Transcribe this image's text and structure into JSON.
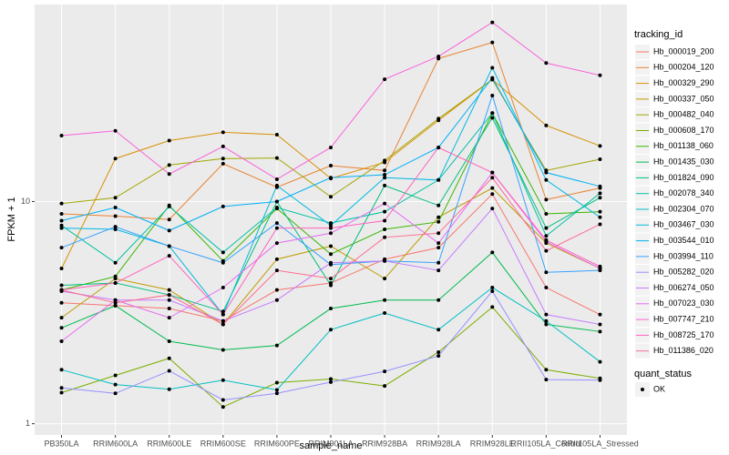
{
  "chart_data": {
    "type": "line",
    "x_label": "sample_name",
    "y_label": "FPKM + 1",
    "categories": [
      "PB350LA",
      "RRIM600LA",
      "RRIM600LE",
      "RRIM600SE",
      "RRIM600PE",
      "RRIM901LA",
      "RRIM928BA",
      "RRIM928LA",
      "RRIM928LE",
      "RRII105LA_Control",
      "RRII105LA_Stressed"
    ],
    "log_y": true,
    "ylim": [
      0.89,
      77
    ],
    "yticks": [
      1,
      10
    ],
    "grid": true,
    "legend_title": "tracking_id",
    "status_legend_title": "quant_status",
    "status_label": "OK",
    "series": [
      {
        "name": "Hb_000019_200",
        "color": "#F8766D",
        "values": [
          3.5,
          3.4,
          3.3,
          2.9,
          4.0,
          4.3,
          5.5,
          6.2,
          10.8,
          4.1,
          3.1
        ]
      },
      {
        "name": "Hb_000204_120",
        "color": "#EA8331",
        "values": [
          8.8,
          8.6,
          8.3,
          14.8,
          11.6,
          14.5,
          13.8,
          44,
          52,
          10.2,
          11.5
        ]
      },
      {
        "name": "Hb_000329_290",
        "color": "#D89000",
        "values": [
          5.0,
          15.6,
          18.8,
          20.5,
          20,
          12.7,
          15,
          23.2,
          35.4,
          22,
          17.8
        ]
      },
      {
        "name": "Hb_000337_050",
        "color": "#C09B00",
        "values": [
          3.0,
          4.5,
          4.0,
          2.8,
          5.5,
          6.3,
          4.5,
          8.5,
          11.5,
          6.5,
          5.0
        ]
      },
      {
        "name": "Hb_000482_040",
        "color": "#A3A500",
        "values": [
          9.8,
          10.4,
          14.6,
          15.6,
          15.7,
          10.5,
          15.3,
          23.6,
          35.4,
          13.8,
          15.5
        ]
      },
      {
        "name": "Hb_000608_170",
        "color": "#7CAE00",
        "values": [
          1.38,
          1.65,
          1.97,
          1.19,
          1.53,
          1.59,
          1.48,
          2.1,
          3.35,
          1.75,
          1.6
        ]
      },
      {
        "name": "Hb_001138_060",
        "color": "#39B600",
        "values": [
          4.0,
          4.6,
          9.6,
          5.4,
          9.3,
          5.8,
          7.5,
          8.1,
          25,
          8.8,
          9.0
        ]
      },
      {
        "name": "Hb_001435_030",
        "color": "#00BB4E",
        "values": [
          2.7,
          3.4,
          2.35,
          2.15,
          2.25,
          3.3,
          3.6,
          3.6,
          5.9,
          2.8,
          2.6
        ]
      },
      {
        "name": "Hb_001824_090",
        "color": "#00BF7D",
        "values": [
          4.2,
          4.3,
          3.8,
          3.2,
          10,
          4.2,
          11.8,
          9.6,
          23.8,
          7.6,
          10.4
        ]
      },
      {
        "name": "Hb_002078_340",
        "color": "#00C1A3",
        "values": [
          7.8,
          5.3,
          9.5,
          5.9,
          9.4,
          8.0,
          9.0,
          12.5,
          25,
          7.0,
          10.9
        ]
      },
      {
        "name": "Hb_002304_070",
        "color": "#00BFC4",
        "values": [
          1.75,
          1.5,
          1.43,
          1.57,
          1.42,
          2.65,
          3.15,
          2.65,
          4.1,
          2.9,
          1.9
        ]
      },
      {
        "name": "Hb_003467_030",
        "color": "#00BAE0",
        "values": [
          7.6,
          7.5,
          6.3,
          3.1,
          11.8,
          7.8,
          12.8,
          12.5,
          40,
          12.5,
          8.5
        ]
      },
      {
        "name": "Hb_003544_010",
        "color": "#00B0F6",
        "values": [
          8.2,
          9.4,
          7.4,
          9.5,
          10.0,
          12.8,
          13.2,
          17.5,
          36,
          13.5,
          11.7
        ]
      },
      {
        "name": "Hb_003994_110",
        "color": "#35A2FF",
        "values": [
          6.2,
          7.7,
          6.3,
          5.3,
          8.0,
          5.2,
          5.4,
          5.3,
          30,
          4.8,
          4.9
        ]
      },
      {
        "name": "Hb_005282_020",
        "color": "#9590FF",
        "values": [
          1.45,
          1.37,
          1.73,
          1.28,
          1.37,
          1.54,
          1.72,
          2.02,
          3.95,
          1.58,
          1.57
        ]
      },
      {
        "name": "Hb_006274_050",
        "color": "#C77CFF",
        "values": [
          3.95,
          3.6,
          3.6,
          2.9,
          3.6,
          5.3,
          5.4,
          4.9,
          9.3,
          3.1,
          2.8
        ]
      },
      {
        "name": "Hb_007023_030",
        "color": "#E76BF3",
        "values": [
          2.35,
          3.6,
          3.0,
          4.1,
          6.5,
          7.2,
          9.8,
          6.5,
          13.5,
          6.6,
          5.0
        ]
      },
      {
        "name": "Hb_007747_210",
        "color": "#FA62DB",
        "values": [
          19.8,
          20.8,
          13.3,
          17.7,
          12.6,
          17.5,
          35.5,
          45,
          64,
          42,
          37
        ]
      },
      {
        "name": "Hb_008725_170",
        "color": "#FF62BC",
        "values": [
          4.0,
          4.3,
          5.7,
          3.1,
          7.6,
          7.6,
          8.2,
          17.5,
          13.5,
          6.7,
          5.1
        ]
      },
      {
        "name": "Hb_011386_020",
        "color": "#FF6C91",
        "values": [
          4.0,
          3.5,
          3.8,
          2.8,
          4.9,
          4.5,
          6.9,
          7.2,
          12.8,
          6.0,
          7.9
        ]
      }
    ]
  }
}
